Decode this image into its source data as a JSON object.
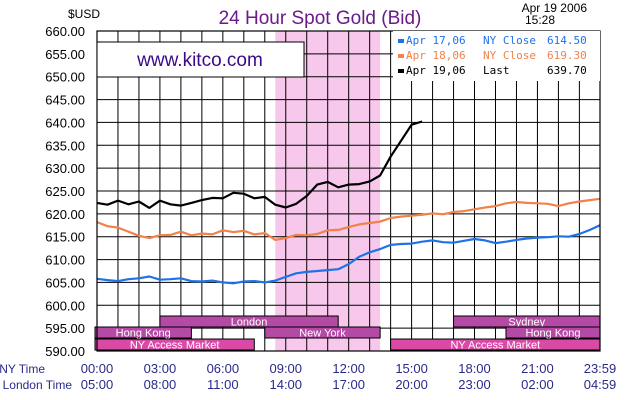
{
  "header": {
    "unit": "$USD",
    "title": "24 Hour Spot Gold (Bid)",
    "date": "Apr 19 2006",
    "time": "15:28",
    "site": "www.kitco.com"
  },
  "colors": {
    "series_blue": "#1e73e8",
    "series_orange": "#f0824a",
    "series_black": "#000000",
    "title": "#6a1a8a",
    "london_band": "#f7c8ec",
    "session_bar": "#b54aa6",
    "access_bar": "#d84aa6"
  },
  "legend": [
    {
      "label": "Apr 17,06",
      "kind": "NY Close",
      "value": "614.50"
    },
    {
      "label": "Apr 18,06",
      "kind": "NY Close",
      "value": "619.30"
    },
    {
      "label": "Apr 19,06",
      "kind": "Last",
      "value": "639.70"
    }
  ],
  "axis_rows": {
    "ny_label": "NY Time",
    "london_label": "London Time"
  },
  "sessions": [
    {
      "label": "London",
      "row": 1,
      "start": 3.0,
      "end": 11.5
    },
    {
      "label": "Sydney",
      "row": 1,
      "start": 17.0,
      "end": 24.0
    },
    {
      "label": "Hong Kong",
      "row": 2,
      "start": -0.3,
      "end": 4.5
    },
    {
      "label": "New York",
      "row": 2,
      "start": 8.0,
      "end": 13.5
    },
    {
      "label": "Hong Kong",
      "row": 2,
      "start": 19.5,
      "end": 24.0
    },
    {
      "label": "NY Access Market",
      "row": 3,
      "start": -0.3,
      "end": 7.5
    },
    {
      "label": "NY Access Market",
      "row": 3,
      "start": 14.0,
      "end": 24.0
    }
  ],
  "chart_data": {
    "type": "line",
    "title": "24 Hour Spot Gold (Bid)",
    "ylabel": "$USD",
    "ylim": [
      590,
      660
    ],
    "yticks": [
      590,
      595,
      600,
      605,
      610,
      615,
      620,
      625,
      630,
      635,
      640,
      645,
      650,
      655,
      660
    ],
    "ytick_labels": [
      "590.00",
      "595.00",
      "600.00",
      "605.00",
      "610.00",
      "615.00",
      "620.00",
      "625.00",
      "630.00",
      "635.00",
      "640.00",
      "645.00",
      "650.00",
      "655.00",
      "660.00"
    ],
    "xlim": [
      0,
      23.983
    ],
    "xticks": [
      0,
      3,
      6,
      9,
      12,
      15,
      18,
      21,
      23.983
    ],
    "x_labels_ny": [
      "00:00",
      "03:00",
      "06:00",
      "09:00",
      "12:00",
      "15:00",
      "18:00",
      "21:00",
      "23:59"
    ],
    "x_labels_london": [
      "05:00",
      "08:00",
      "11:00",
      "14:00",
      "17:00",
      "20:00",
      "23:00",
      "02:00",
      "04:59"
    ],
    "grid": true,
    "london_highlight": [
      8.5,
      13.5
    ],
    "series": [
      {
        "name": "Apr 17,06",
        "color": "#1e73e8",
        "x": [
          0,
          0.5,
          1,
          1.5,
          2,
          2.5,
          3,
          3.5,
          4,
          4.5,
          5,
          5.5,
          6,
          6.5,
          7,
          7.5,
          8,
          8.5,
          9,
          9.5,
          10,
          10.5,
          11,
          11.5,
          12,
          12.5,
          13,
          13.5,
          14,
          14.5,
          15,
          15.5,
          16,
          16.5,
          17,
          17.5,
          18,
          18.5,
          19,
          19.5,
          20,
          20.5,
          21,
          21.5,
          22,
          22.5,
          23,
          23.5,
          23.983
        ],
        "y": [
          605.8,
          605.5,
          605.3,
          605.7,
          605.9,
          606.3,
          605.6,
          605.7,
          605.9,
          605.3,
          605.2,
          605.4,
          605.0,
          604.8,
          605.2,
          605.3,
          605.0,
          605.4,
          606.2,
          607.0,
          607.3,
          607.5,
          607.7,
          607.9,
          609.0,
          610.6,
          611.6,
          612.3,
          613.2,
          613.4,
          613.5,
          613.9,
          614.2,
          613.8,
          613.7,
          614.1,
          614.5,
          614.2,
          613.6,
          613.9,
          614.3,
          614.6,
          614.8,
          614.9,
          615.1,
          615.0,
          615.6,
          616.5,
          617.5
        ]
      },
      {
        "name": "Apr 18,06",
        "color": "#f0824a",
        "x": [
          0,
          0.5,
          1,
          1.5,
          2,
          2.5,
          3,
          3.5,
          4,
          4.5,
          5,
          5.5,
          6,
          6.5,
          7,
          7.5,
          8,
          8.5,
          9,
          9.5,
          10,
          10.5,
          11,
          11.5,
          12,
          12.5,
          13,
          13.5,
          14,
          14.5,
          15,
          15.5,
          16,
          16.5,
          17,
          17.5,
          18,
          18.5,
          19,
          19.5,
          20,
          20.5,
          21,
          21.5,
          22,
          22.5,
          23,
          23.5,
          23.983
        ],
        "y": [
          618.2,
          617.3,
          617.0,
          616.1,
          615.2,
          614.7,
          615.3,
          615.4,
          616.1,
          615.3,
          615.7,
          615.5,
          616.4,
          616.0,
          616.3,
          615.5,
          615.8,
          614.3,
          614.7,
          615.4,
          615.3,
          615.6,
          616.4,
          616.5,
          617.1,
          617.7,
          618.0,
          618.3,
          619.1,
          619.4,
          619.6,
          619.8,
          620.1,
          619.9,
          620.4,
          620.6,
          621.0,
          621.4,
          621.7,
          622.3,
          622.6,
          622.4,
          622.3,
          622.2,
          621.7,
          622.3,
          622.7,
          623.0,
          623.3
        ]
      },
      {
        "name": "Apr 19,06",
        "color": "#000000",
        "x": [
          0,
          0.5,
          1,
          1.5,
          2,
          2.5,
          3,
          3.5,
          4,
          4.5,
          5,
          5.5,
          6,
          6.5,
          7,
          7.5,
          8,
          8.5,
          9,
          9.5,
          10,
          10.5,
          11,
          11.5,
          12,
          12.5,
          13,
          13.5,
          14,
          14.5,
          15,
          15.5
        ],
        "y": [
          622.4,
          622.0,
          622.9,
          622.1,
          622.7,
          621.3,
          622.9,
          622.1,
          621.8,
          622.4,
          623.0,
          623.5,
          623.4,
          624.6,
          624.4,
          623.4,
          623.7,
          622.0,
          621.4,
          622.2,
          623.9,
          626.4,
          627.0,
          625.8,
          626.4,
          626.5,
          627.1,
          628.4,
          632.5,
          636.0,
          639.5,
          640.2
        ]
      }
    ]
  }
}
